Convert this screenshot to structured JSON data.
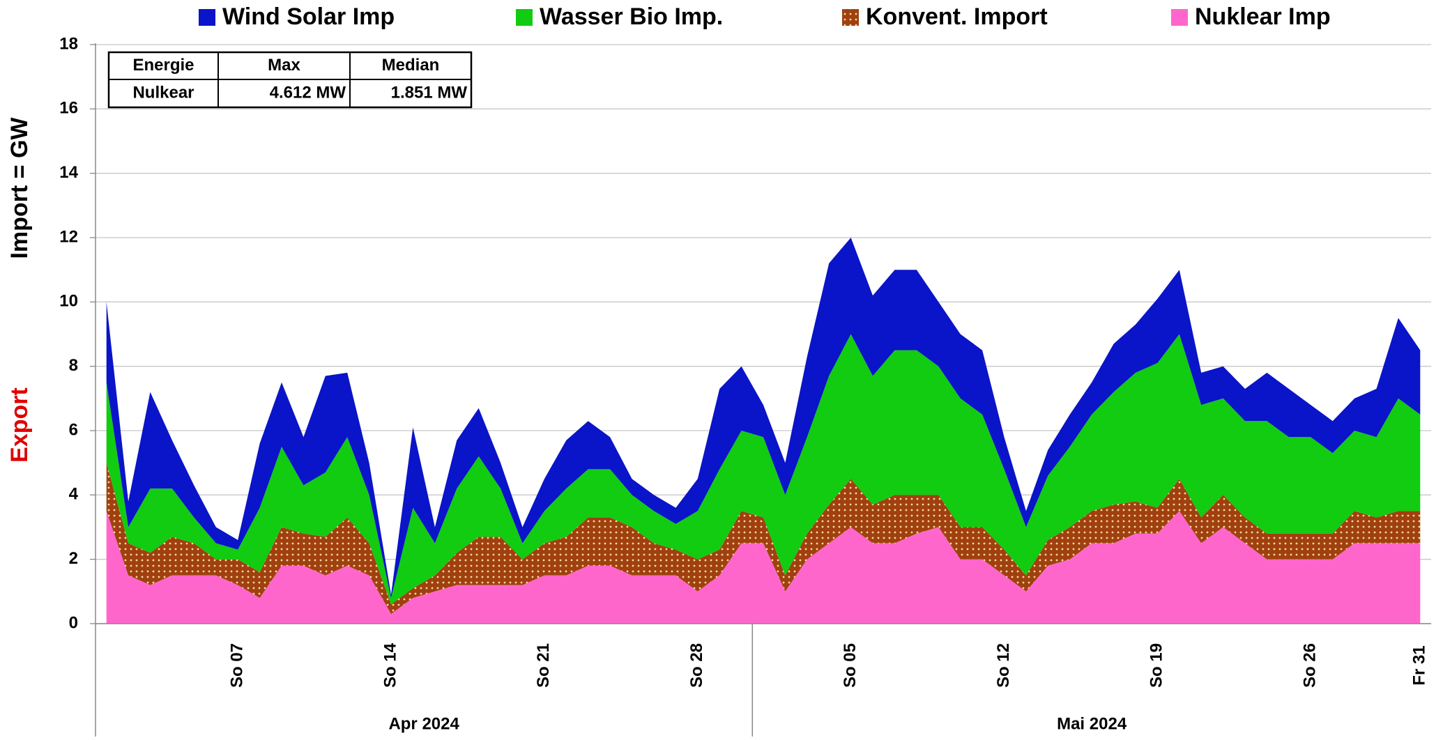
{
  "chart_data": {
    "type": "stacked_area",
    "ylabel": "Import   =   GW",
    "ylabel_export": "Export",
    "ylim": [
      0,
      18
    ],
    "yticks": [
      0,
      2,
      4,
      6,
      8,
      10,
      12,
      14,
      16,
      18
    ],
    "grid": true,
    "legend": "top",
    "categories": [
      null,
      null,
      null,
      null,
      null,
      null,
      "So 07",
      null,
      null,
      null,
      null,
      null,
      null,
      "So 14",
      null,
      null,
      null,
      null,
      null,
      null,
      "So 21",
      null,
      null,
      null,
      null,
      null,
      null,
      "So 28",
      null,
      null,
      null,
      null,
      null,
      null,
      "So 05",
      null,
      null,
      null,
      null,
      null,
      null,
      "So 12",
      null,
      null,
      null,
      null,
      null,
      null,
      "So 19",
      null,
      null,
      null,
      null,
      null,
      null,
      "So 26",
      null,
      null,
      null,
      null,
      "Fr 31"
    ],
    "month_groups": [
      {
        "label": "Apr 2024",
        "days": 30
      },
      {
        "label": "Mai 2024",
        "days": 31
      }
    ],
    "series": [
      {
        "name": "Wind Solar Imp",
        "color": "#0a14c8",
        "values": [
          2.5,
          0.8,
          3.0,
          1.5,
          1.0,
          0.5,
          0.3,
          2.0,
          2.0,
          1.5,
          3.0,
          2.0,
          1.0,
          0.1,
          2.5,
          0.5,
          1.5,
          1.5,
          0.8,
          0.5,
          1.0,
          1.5,
          1.5,
          1.0,
          0.5,
          0.5,
          0.5,
          1.0,
          2.5,
          2.0,
          1.0,
          1.0,
          2.5,
          3.5,
          3.0,
          2.5,
          2.5,
          2.5,
          2.0,
          2.0,
          2.0,
          1.0,
          0.5,
          0.8,
          1.0,
          1.0,
          1.5,
          1.5,
          2.0,
          2.0,
          1.0,
          1.0,
          1.0,
          1.5,
          1.5,
          1.0,
          1.0,
          1.0,
          1.5,
          2.5,
          2.0
        ]
      },
      {
        "name": "Wasser Bio Imp.",
        "color": "#11cc11",
        "values": [
          2.5,
          0.5,
          2.0,
          1.5,
          0.8,
          0.5,
          0.3,
          2.0,
          2.5,
          1.5,
          2.0,
          2.5,
          1.5,
          0.2,
          2.5,
          1.0,
          2.0,
          2.5,
          1.5,
          0.5,
          1.0,
          1.5,
          1.5,
          1.5,
          1.0,
          1.0,
          0.8,
          1.5,
          2.5,
          2.5,
          2.5,
          2.5,
          3.0,
          4.0,
          4.5,
          4.0,
          4.5,
          4.5,
          4.0,
          4.0,
          3.5,
          2.5,
          1.5,
          2.0,
          2.5,
          3.0,
          3.5,
          4.0,
          4.5,
          4.5,
          3.5,
          3.0,
          3.0,
          3.5,
          3.0,
          3.0,
          2.5,
          2.5,
          2.5,
          3.5,
          3.0
        ]
      },
      {
        "name": "Konvent. Import",
        "color": "#a0400f",
        "values": [
          1.5,
          1.0,
          1.0,
          1.2,
          1.0,
          0.5,
          0.8,
          0.8,
          1.2,
          1.0,
          1.2,
          1.5,
          1.0,
          0.3,
          0.3,
          0.5,
          1.0,
          1.5,
          1.5,
          0.8,
          1.0,
          1.2,
          1.5,
          1.5,
          1.5,
          1.0,
          0.8,
          1.0,
          0.8,
          1.0,
          0.8,
          0.5,
          0.8,
          1.2,
          1.5,
          1.2,
          1.5,
          1.2,
          1.0,
          1.0,
          1.0,
          0.8,
          0.5,
          0.8,
          1.0,
          1.0,
          1.2,
          1.0,
          0.8,
          1.0,
          0.8,
          1.0,
          0.8,
          0.8,
          0.8,
          0.8,
          0.8,
          1.0,
          0.8,
          1.0,
          1.0
        ]
      },
      {
        "name": "Nuklear Imp",
        "color": "#ff66cc",
        "values": [
          3.5,
          1.5,
          1.2,
          1.5,
          1.5,
          1.5,
          1.2,
          0.8,
          1.8,
          1.8,
          1.5,
          1.8,
          1.5,
          0.3,
          0.8,
          1.0,
          1.2,
          1.2,
          1.2,
          1.2,
          1.5,
          1.5,
          1.8,
          1.8,
          1.5,
          1.5,
          1.5,
          1.0,
          1.5,
          2.5,
          2.5,
          1.0,
          2.0,
          2.5,
          3.0,
          2.5,
          2.5,
          2.8,
          3.0,
          2.0,
          2.0,
          1.5,
          1.0,
          1.8,
          2.0,
          2.5,
          2.5,
          2.8,
          2.8,
          3.5,
          2.5,
          3.0,
          2.5,
          2.0,
          2.0,
          2.0,
          2.0,
          2.5,
          2.5,
          2.5,
          2.5
        ]
      }
    ],
    "table": {
      "header": [
        "Energie",
        "Max",
        "Median"
      ],
      "rows": [
        [
          "Nulkear",
          "4.612 MW",
          "1.851 MW"
        ]
      ]
    }
  }
}
